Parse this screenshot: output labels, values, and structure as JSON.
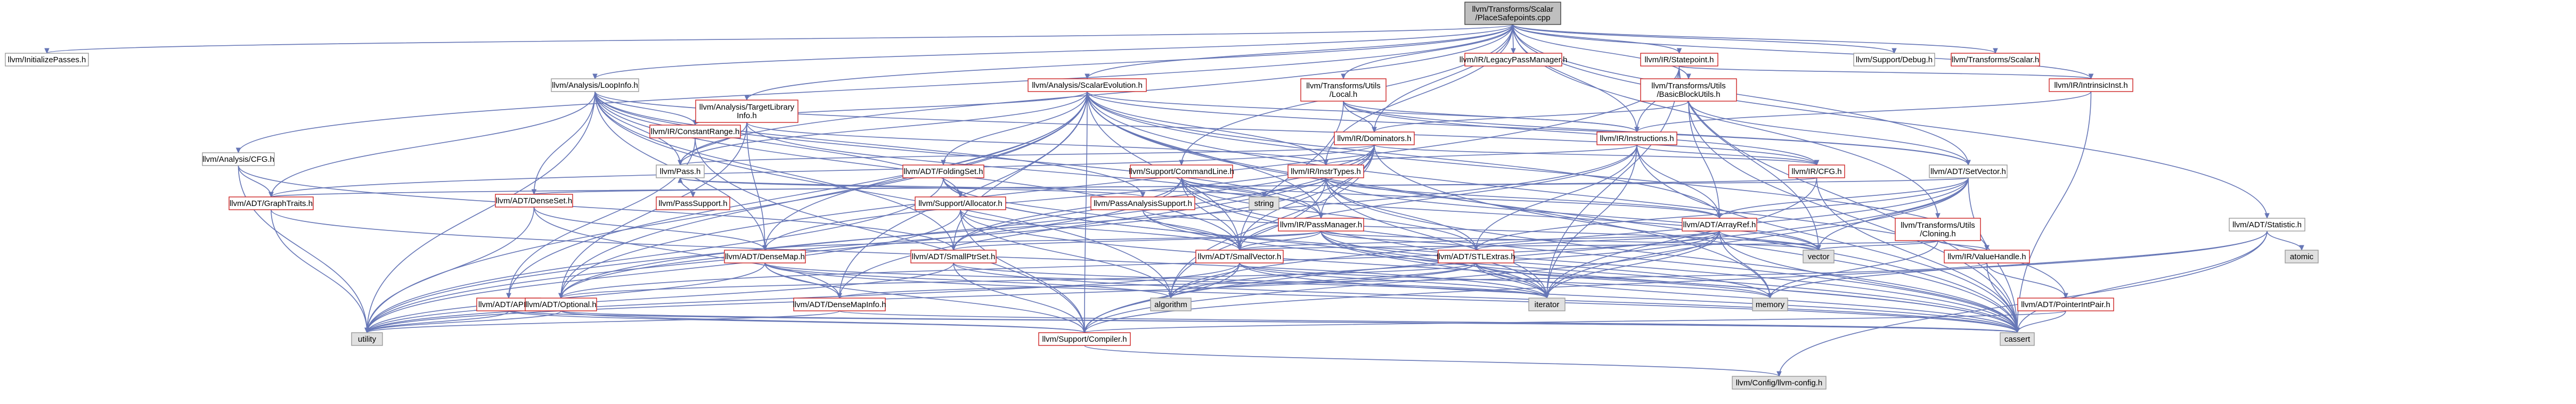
{
  "title": "llvm/Transforms/Scalar/PlaceSafepoints.cpp include dependency graph",
  "colors": {
    "edge": "#6676b6",
    "root_fill": "#bfbfbf",
    "red_border": "#cc2222",
    "gray_fill": "#e0e0e0",
    "plain_border": "#999999"
  },
  "nodes": [
    {
      "id": "root",
      "label": "llvm/Transforms/Scalar\n/PlaceSafepoints.cpp",
      "kind": "root"
    },
    {
      "id": "initpasses",
      "label": "llvm/InitializePasses.h",
      "kind": "plain"
    },
    {
      "id": "cfg",
      "label": "llvm/Analysis/CFG.h",
      "kind": "plain"
    },
    {
      "id": "loopinfo",
      "label": "llvm/Analysis/LoopInfo.h",
      "kind": "plain"
    },
    {
      "id": "scev",
      "label": "llvm/Analysis/ScalarEvolution.h",
      "kind": "red"
    },
    {
      "id": "tli",
      "label": "llvm/Analysis/TargetLibrary\nInfo.h",
      "kind": "red"
    },
    {
      "id": "utilslocal",
      "label": "llvm/Transforms/Utils\n/Local.h",
      "kind": "red"
    },
    {
      "id": "legacypm",
      "label": "llvm/IR/LegacyPassManager.h",
      "kind": "red"
    },
    {
      "id": "statepoint",
      "label": "llvm/IR/Statepoint.h",
      "kind": "red"
    },
    {
      "id": "debug",
      "label": "llvm/Support/Debug.h",
      "kind": "plain"
    },
    {
      "id": "scalar",
      "label": "llvm/Transforms/Scalar.h",
      "kind": "red"
    },
    {
      "id": "intrinsicinst",
      "label": "llvm/IR/IntrinsicInst.h",
      "kind": "red"
    },
    {
      "id": "bbutils",
      "label": "llvm/Transforms/Utils\n/BasicBlockUtils.h",
      "kind": "red"
    },
    {
      "id": "constantrange",
      "label": "llvm/IR/ConstantRange.h",
      "kind": "red"
    },
    {
      "id": "dominators",
      "label": "llvm/IR/Dominators.h",
      "kind": "red"
    },
    {
      "id": "instructions",
      "label": "llvm/IR/Instructions.h",
      "kind": "red"
    },
    {
      "id": "pass",
      "label": "llvm/Pass.h",
      "kind": "plain"
    },
    {
      "id": "foldingset",
      "label": "llvm/ADT/FoldingSet.h",
      "kind": "red"
    },
    {
      "id": "cmdline",
      "label": "llvm/Support/CommandLine.h",
      "kind": "red"
    },
    {
      "id": "insttypes",
      "label": "llvm/IR/InstrTypes.h",
      "kind": "red"
    },
    {
      "id": "ircfg",
      "label": "llvm/IR/CFG.h",
      "kind": "red"
    },
    {
      "id": "setvector",
      "label": "llvm/ADT/SetVector.h",
      "kind": "plain"
    },
    {
      "id": "graphtraits",
      "label": "llvm/ADT/GraphTraits.h",
      "kind": "red"
    },
    {
      "id": "densesetset",
      "label": "llvm/ADT/DenseSet.h",
      "kind": "red"
    },
    {
      "id": "passsupport",
      "label": "llvm/PassSupport.h",
      "kind": "red"
    },
    {
      "id": "allocator",
      "label": "llvm/Support/Allocator.h",
      "kind": "red"
    },
    {
      "id": "pasupport",
      "label": "llvm/PassAnalysisSupport.h",
      "kind": "red"
    },
    {
      "id": "string",
      "label": "string",
      "kind": "gray"
    },
    {
      "id": "passmanager",
      "label": "llvm/IR/PassManager.h",
      "kind": "red"
    },
    {
      "id": "arrayref",
      "label": "llvm/ADT/ArrayRef.h",
      "kind": "red"
    },
    {
      "id": "cloning",
      "label": "llvm/Transforms/Utils\n/Cloning.h",
      "kind": "red"
    },
    {
      "id": "statistic",
      "label": "llvm/ADT/Statistic.h",
      "kind": "plain"
    },
    {
      "id": "atomic",
      "label": "atomic",
      "kind": "gray"
    },
    {
      "id": "densemap",
      "label": "llvm/ADT/DenseMap.h",
      "kind": "red"
    },
    {
      "id": "smallptrset",
      "label": "llvm/ADT/SmallPtrSet.h",
      "kind": "red"
    },
    {
      "id": "smallvector",
      "label": "llvm/ADT/SmallVector.h",
      "kind": "red"
    },
    {
      "id": "stlextras",
      "label": "llvm/ADT/STLExtras.h",
      "kind": "red"
    },
    {
      "id": "vector",
      "label": "vector",
      "kind": "gray"
    },
    {
      "id": "valuehandle",
      "label": "llvm/IR/ValueHandle.h",
      "kind": "red"
    },
    {
      "id": "apint",
      "label": "llvm/ADT/APInt.h",
      "kind": "red"
    },
    {
      "id": "optional",
      "label": "llvm/ADT/Optional.h",
      "kind": "red"
    },
    {
      "id": "densemapinfo",
      "label": "llvm/ADT/DenseMapInfo.h",
      "kind": "red"
    },
    {
      "id": "algorithm",
      "label": "algorithm",
      "kind": "gray"
    },
    {
      "id": "iterator",
      "label": "iterator",
      "kind": "gray"
    },
    {
      "id": "memory",
      "label": "memory",
      "kind": "gray"
    },
    {
      "id": "ptrintpair",
      "label": "llvm/ADT/PointerIntPair.h",
      "kind": "red"
    },
    {
      "id": "utility",
      "label": "utility",
      "kind": "gray"
    },
    {
      "id": "compiler",
      "label": "llvm/Support/Compiler.h",
      "kind": "red"
    },
    {
      "id": "cassert",
      "label": "cassert",
      "kind": "gray"
    },
    {
      "id": "config",
      "label": "llvm/Config/llvm-config.h",
      "kind": "gray"
    }
  ],
  "edges": [
    [
      "root",
      "initpasses"
    ],
    [
      "root",
      "cfg"
    ],
    [
      "root",
      "loopinfo"
    ],
    [
      "root",
      "scev"
    ],
    [
      "root",
      "tli"
    ],
    [
      "root",
      "utilslocal"
    ],
    [
      "root",
      "legacypm"
    ],
    [
      "root",
      "statepoint"
    ],
    [
      "root",
      "debug"
    ],
    [
      "root",
      "scalar"
    ],
    [
      "root",
      "intrinsicinst"
    ],
    [
      "root",
      "bbutils"
    ],
    [
      "root",
      "dominators"
    ],
    [
      "root",
      "instructions"
    ],
    [
      "root",
      "pass"
    ],
    [
      "root",
      "cloning"
    ],
    [
      "root",
      "statistic"
    ],
    [
      "root",
      "setvector"
    ],
    [
      "root",
      "insttypes"
    ],
    [
      "root",
      "cmdline"
    ],
    [
      "cfg",
      "graphtraits"
    ],
    [
      "cfg",
      "smallptrset"
    ],
    [
      "cfg",
      "utility"
    ],
    [
      "loopinfo",
      "pass"
    ],
    [
      "loopinfo",
      "densemap"
    ],
    [
      "loopinfo",
      "densesetset"
    ],
    [
      "loopinfo",
      "graphtraits"
    ],
    [
      "loopinfo",
      "smallptrset"
    ],
    [
      "loopinfo",
      "smallvector"
    ],
    [
      "loopinfo",
      "constantrange"
    ],
    [
      "loopinfo",
      "pasupport"
    ],
    [
      "loopinfo",
      "passmanager"
    ],
    [
      "loopinfo",
      "ircfg"
    ],
    [
      "loopinfo",
      "allocator"
    ],
    [
      "loopinfo",
      "algorithm"
    ],
    [
      "loopinfo",
      "utility"
    ],
    [
      "scev",
      "foldingset"
    ],
    [
      "scev",
      "densemap"
    ],
    [
      "scev",
      "densemapinfo"
    ],
    [
      "scev",
      "smallptrset"
    ],
    [
      "scev",
      "smallvector"
    ],
    [
      "scev",
      "constantrange"
    ],
    [
      "scev",
      "instructions"
    ],
    [
      "scev",
      "insttypes"
    ],
    [
      "scev",
      "passmanager"
    ],
    [
      "scev",
      "pass"
    ],
    [
      "scev",
      "valuehandle"
    ],
    [
      "scev",
      "apint"
    ],
    [
      "scev",
      "optional"
    ],
    [
      "scev",
      "setvector"
    ],
    [
      "scev",
      "arrayref"
    ],
    [
      "scev",
      "ptrintpair"
    ],
    [
      "scev",
      "memory"
    ],
    [
      "scev",
      "cassert"
    ],
    [
      "scev",
      "compiler"
    ],
    [
      "scev",
      "utility"
    ],
    [
      "tli",
      "densemap"
    ],
    [
      "tli",
      "optional"
    ],
    [
      "tli",
      "insttypes"
    ],
    [
      "tli",
      "passmanager"
    ],
    [
      "tli",
      "pass"
    ],
    [
      "utilslocal",
      "dominators"
    ],
    [
      "utilslocal",
      "ircfg"
    ],
    [
      "utilslocal",
      "instructions"
    ],
    [
      "utilslocal",
      "setvector"
    ],
    [
      "utilslocal",
      "smallvector"
    ],
    [
      "utilslocal",
      "cstdint"
    ],
    [
      "statepoint",
      "instructions"
    ],
    [
      "statepoint",
      "intrinsicinst"
    ],
    [
      "statepoint",
      "iterator"
    ],
    [
      "statepoint",
      "optional"
    ],
    [
      "statepoint",
      "cassert"
    ],
    [
      "statepoint",
      "vector"
    ],
    [
      "intrinsicinst",
      "instructions"
    ],
    [
      "intrinsicinst",
      "cassert"
    ],
    [
      "bbutils",
      "arrayref"
    ],
    [
      "bbutils",
      "setvector"
    ],
    [
      "bbutils",
      "dominators"
    ],
    [
      "bbutils",
      "cassert"
    ],
    [
      "constantrange",
      "apint"
    ],
    [
      "constantrange",
      "compiler"
    ],
    [
      "constantrange",
      "cstdint"
    ],
    [
      "dominators",
      "densemapinfo"
    ],
    [
      "dominators",
      "densemap"
    ],
    [
      "dominators",
      "ircfg"
    ],
    [
      "dominators",
      "passmanager"
    ],
    [
      "dominators",
      "pass"
    ],
    [
      "dominators",
      "graphtraits"
    ],
    [
      "dominators",
      "smallptrset"
    ],
    [
      "dominators",
      "smallvector"
    ],
    [
      "dominators",
      "algorithm"
    ],
    [
      "dominators",
      "utility"
    ],
    [
      "dominators",
      "cassert"
    ],
    [
      "instructions",
      "arrayref"
    ],
    [
      "instructions",
      "stlextras"
    ],
    [
      "instructions",
      "insttypes"
    ],
    [
      "instructions",
      "ircfg"
    ],
    [
      "instructions",
      "smallvector"
    ],
    [
      "instructions",
      "iterator"
    ],
    [
      "instructions",
      "cassert"
    ],
    [
      "instructions",
      "optional"
    ],
    [
      "pass",
      "passsupport"
    ],
    [
      "pass",
      "pasupport"
    ],
    [
      "pass",
      "string"
    ],
    [
      "foldingset",
      "smallvector"
    ],
    [
      "foldingset",
      "allocator"
    ],
    [
      "foldingset",
      "iterator"
    ],
    [
      "foldingset",
      "utility"
    ],
    [
      "foldingset",
      "cassert"
    ],
    [
      "cmdline",
      "arrayref"
    ],
    [
      "cmdline",
      "smallptrset"
    ],
    [
      "cmdline",
      "smallvector"
    ],
    [
      "cmdline",
      "stlextras"
    ],
    [
      "cmdline",
      "string"
    ],
    [
      "cmdline",
      "vector"
    ],
    [
      "cmdline",
      "utility"
    ],
    [
      "cmdline",
      "cassert"
    ],
    [
      "cmdline",
      "iterator"
    ],
    [
      "insttypes",
      "arrayref"
    ],
    [
      "insttypes",
      "stlextras"
    ],
    [
      "insttypes",
      "optional"
    ],
    [
      "insttypes",
      "iterator"
    ],
    [
      "insttypes",
      "string"
    ],
    [
      "insttypes",
      "vector"
    ],
    [
      "insttypes",
      "cassert"
    ],
    [
      "insttypes",
      "algorithm"
    ],
    [
      "ircfg",
      "graphtraits"
    ],
    [
      "ircfg",
      "iterator"
    ],
    [
      "ircfg",
      "cassert"
    ],
    [
      "ircfg",
      "cstddef"
    ],
    [
      "setvector",
      "arrayref"
    ],
    [
      "setvector",
      "densesetset"
    ],
    [
      "setvector",
      "stlextras"
    ],
    [
      "setvector",
      "compiler"
    ],
    [
      "setvector",
      "algorithm"
    ],
    [
      "setvector",
      "cassert"
    ],
    [
      "setvector",
      "iterator"
    ],
    [
      "setvector",
      "vector"
    ],
    [
      "graphtraits",
      "iterator"
    ],
    [
      "graphtraits",
      "utility"
    ],
    [
      "densesetset",
      "densemap"
    ],
    [
      "densesetset",
      "densemapinfo"
    ],
    [
      "densesetset",
      "utility"
    ],
    [
      "passsupport",
      "pass"
    ],
    [
      "allocator",
      "compiler"
    ],
    [
      "allocator",
      "smallvector"
    ],
    [
      "allocator",
      "algorithm"
    ],
    [
      "allocator",
      "cassert"
    ],
    [
      "allocator",
      "utility"
    ],
    [
      "pasupport",
      "smallvector"
    ],
    [
      "pasupport",
      "cassert"
    ],
    [
      "pasupport",
      "vector"
    ],
    [
      "passmanager",
      "smallptrset"
    ],
    [
      "passmanager",
      "smallvector"
    ],
    [
      "passmanager",
      "stlextras"
    ],
    [
      "passmanager",
      "densemap"
    ],
    [
      "passmanager",
      "vector"
    ],
    [
      "passmanager",
      "memory"
    ],
    [
      "passmanager",
      "iterator"
    ],
    [
      "passmanager",
      "cassert"
    ],
    [
      "arrayref",
      "smallvector"
    ],
    [
      "arrayref",
      "stlextras"
    ],
    [
      "arrayref",
      "compiler"
    ],
    [
      "arrayref",
      "optional"
    ],
    [
      "arrayref",
      "iterator"
    ],
    [
      "arrayref",
      "memory"
    ],
    [
      "arrayref",
      "vector"
    ],
    [
      "arrayref",
      "cassert"
    ],
    [
      "arrayref",
      "algorithm"
    ],
    [
      "cloning",
      "valuehandle"
    ],
    [
      "cloning",
      "smallvector"
    ],
    [
      "cloning",
      "memory"
    ],
    [
      "cloning",
      "vector"
    ],
    [
      "cloning",
      "functional"
    ],
    [
      "statistic",
      "atomic"
    ],
    [
      "statistic",
      "memory"
    ],
    [
      "statistic",
      "config"
    ],
    [
      "statistic",
      "compiler"
    ],
    [
      "statistic",
      "cassert"
    ],
    [
      "densemap",
      "densemapinfo"
    ],
    [
      "densemap",
      "compiler"
    ],
    [
      "densemap",
      "algorithm"
    ],
    [
      "densemap",
      "iterator"
    ],
    [
      "densemap",
      "utility"
    ],
    [
      "densemap",
      "cassert"
    ],
    [
      "smallptrset",
      "compiler"
    ],
    [
      "smallptrset",
      "iterator"
    ],
    [
      "smallptrset",
      "utility"
    ],
    [
      "smallptrset",
      "cassert"
    ],
    [
      "smallvector",
      "compiler"
    ],
    [
      "smallvector",
      "algorithm"
    ],
    [
      "smallvector",
      "iterator"
    ],
    [
      "smallvector",
      "memory"
    ],
    [
      "smallvector",
      "utility"
    ],
    [
      "smallvector",
      "cassert"
    ],
    [
      "stlextras",
      "optional"
    ],
    [
      "stlextras",
      "iterator"
    ],
    [
      "stlextras",
      "memory"
    ],
    [
      "stlextras",
      "utility"
    ],
    [
      "stlextras",
      "cassert"
    ],
    [
      "stlextras",
      "algorithm"
    ],
    [
      "valuehandle",
      "ptrintpair"
    ],
    [
      "valuehandle",
      "densemapinfo"
    ],
    [
      "valuehandle",
      "cassert"
    ],
    [
      "apint",
      "compiler"
    ],
    [
      "apint",
      "cassert"
    ],
    [
      "apint",
      "utility"
    ],
    [
      "optional",
      "compiler"
    ],
    [
      "optional",
      "utility"
    ],
    [
      "optional",
      "cassert"
    ],
    [
      "densemapinfo",
      "utility"
    ],
    [
      "densemapinfo",
      "cassert"
    ],
    [
      "ptrintpair",
      "compiler"
    ],
    [
      "ptrintpair",
      "cassert"
    ],
    [
      "compiler",
      "config"
    ]
  ]
}
